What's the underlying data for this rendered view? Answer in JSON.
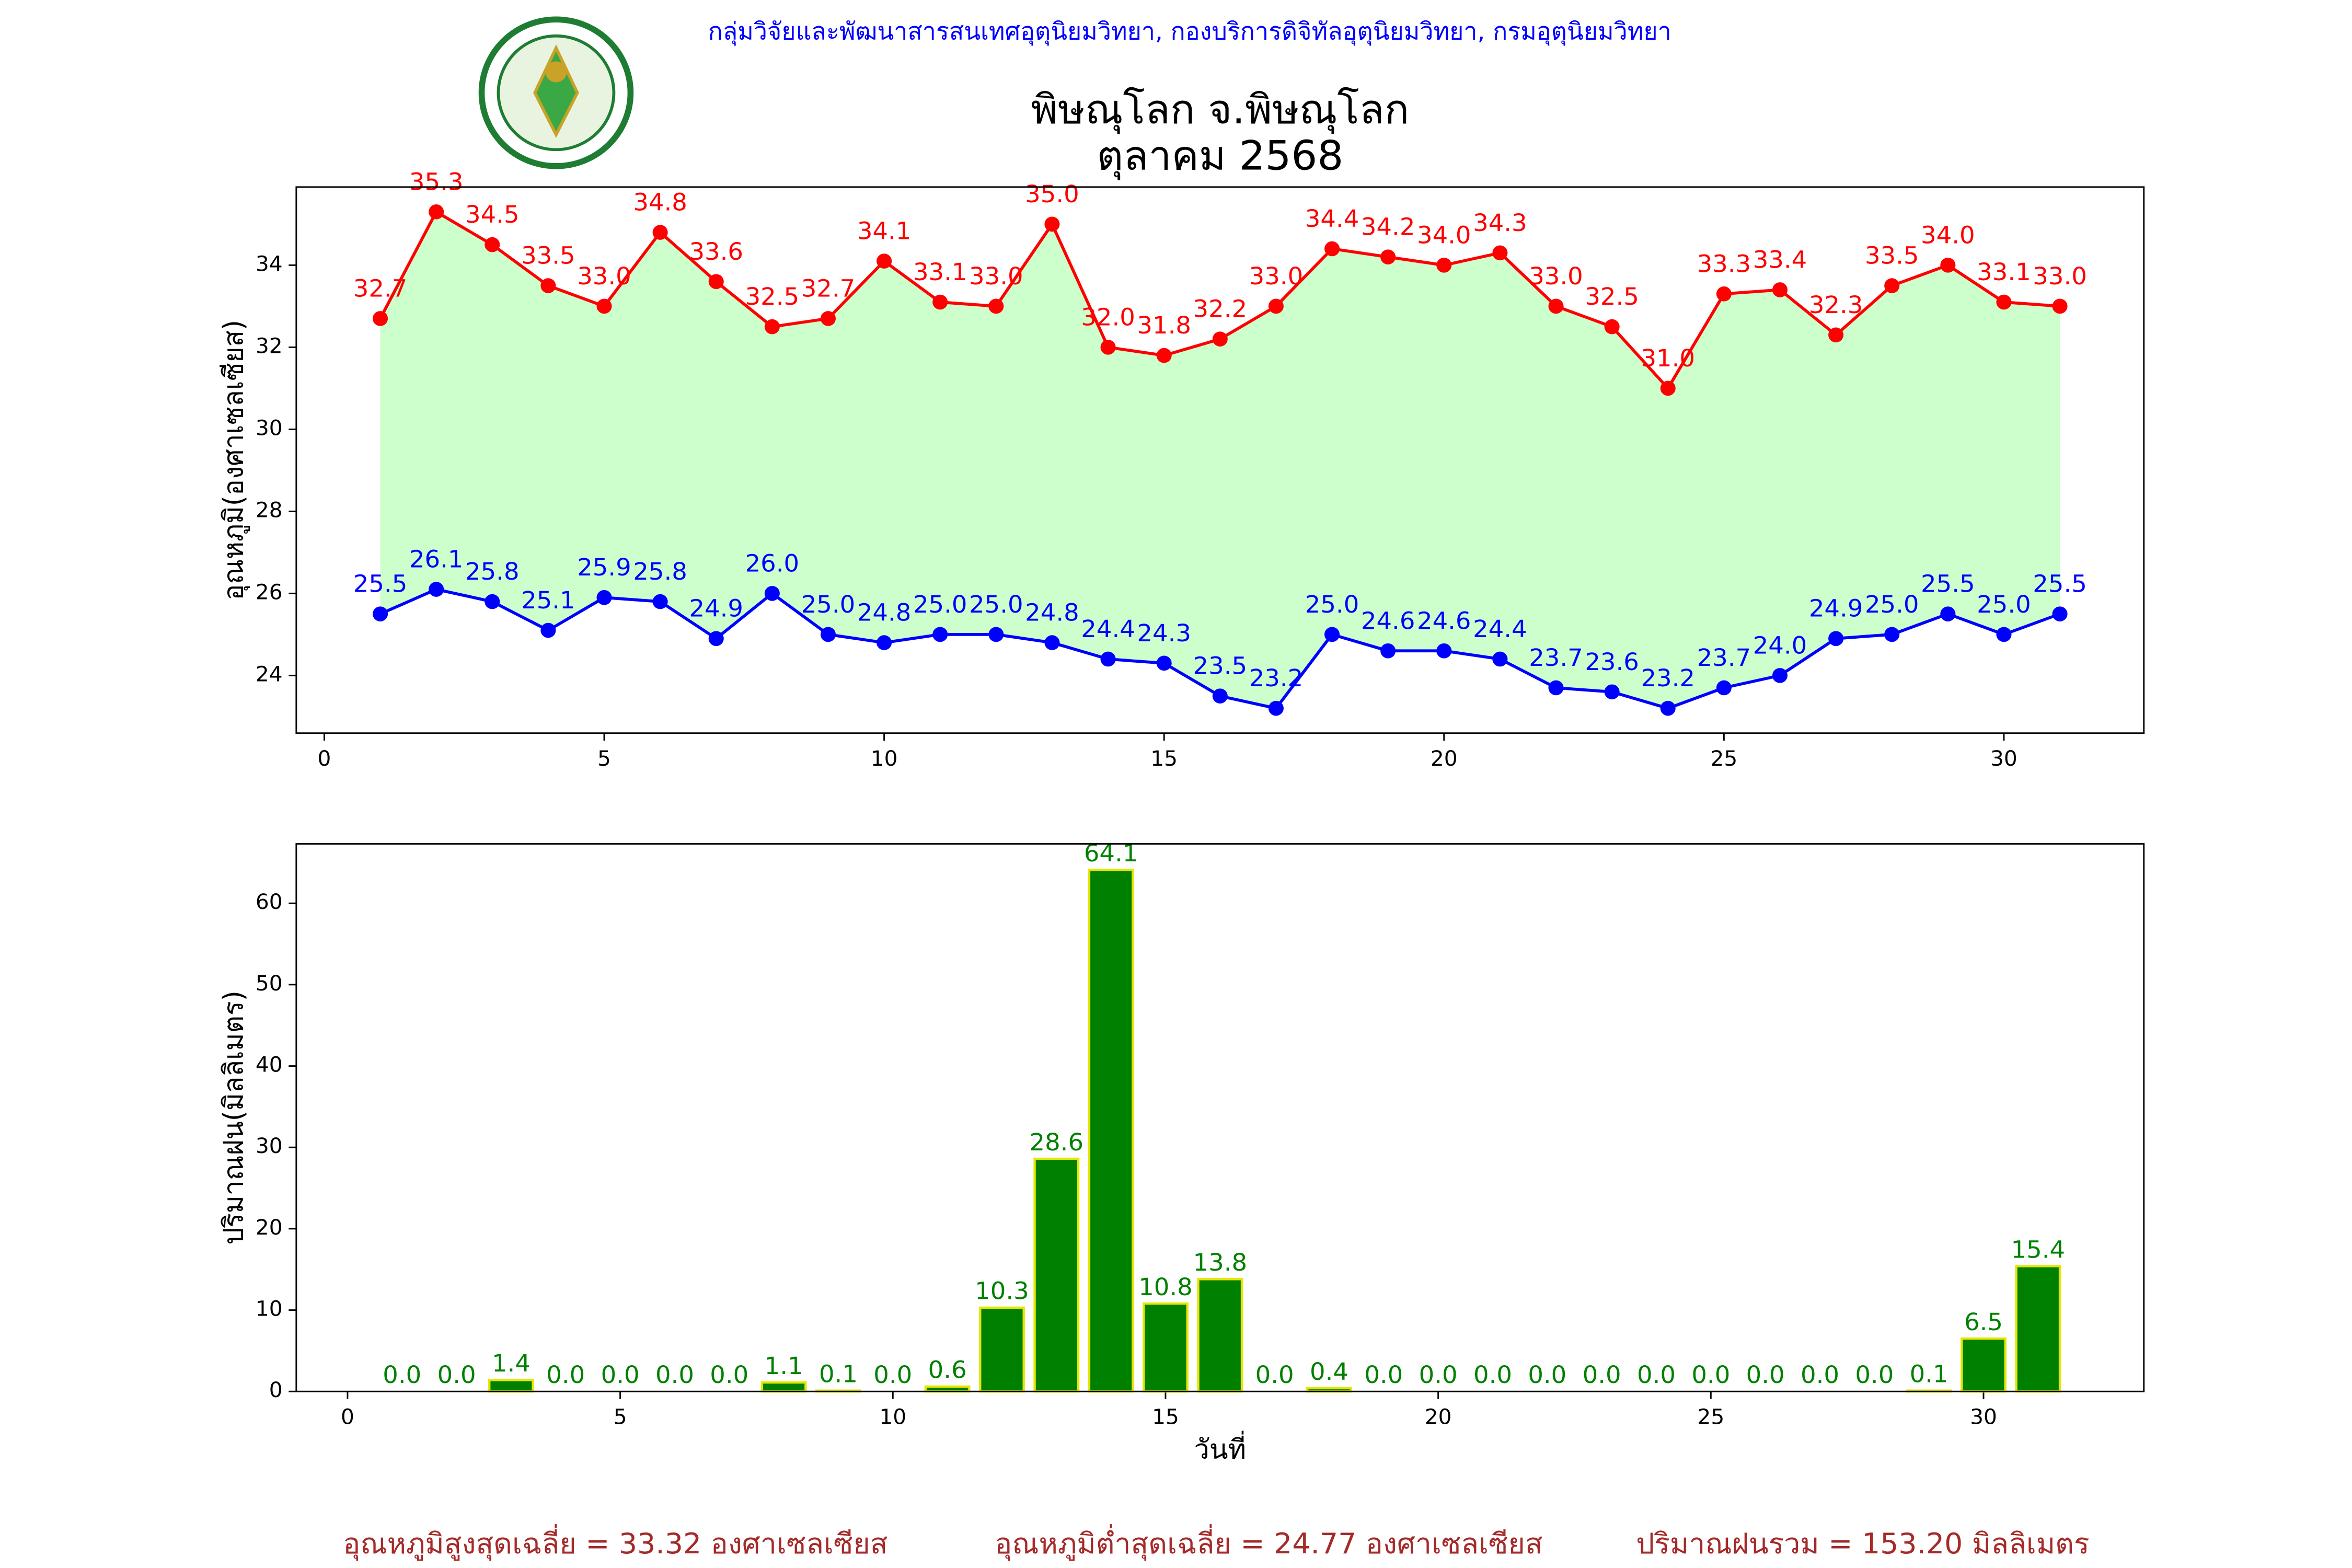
{
  "header": {
    "organization": "กลุ่มวิจัยและพัฒนาสารสนเทศอุตุนิยมวิทยา, กองบริการดิจิทัลอุตุนิยมวิทยา, กรมอุตุนิยมวิทยา",
    "title": "พิษณุโลก จ.พิษณุโลก",
    "subtitle": "ตุลาคม 2568"
  },
  "chart_data": [
    {
      "type": "line",
      "y_label": "อุณหภูมิ(องศาเซลเซียส)",
      "x": [
        1,
        2,
        3,
        4,
        5,
        6,
        7,
        8,
        9,
        10,
        11,
        12,
        13,
        14,
        15,
        16,
        17,
        18,
        19,
        20,
        21,
        22,
        23,
        24,
        25,
        26,
        27,
        28,
        29,
        30,
        31
      ],
      "series": [
        {
          "name": "max",
          "color": "#ff0000",
          "values": [
            32.7,
            35.3,
            34.5,
            33.5,
            33.0,
            34.8,
            33.6,
            32.5,
            32.7,
            34.1,
            33.1,
            33.0,
            35.0,
            32.0,
            31.8,
            32.2,
            33.0,
            34.4,
            34.2,
            34.0,
            34.3,
            33.0,
            32.5,
            31.0,
            33.3,
            33.4,
            32.3,
            33.5,
            34.0,
            33.1,
            33.0
          ],
          "value_labels": [
            "32.7",
            "35.3",
            "34.5",
            "33.5",
            "33.0",
            "34.8",
            "33.6",
            "32.5",
            "32.7",
            "34.1",
            "33.1",
            "33.0",
            "35.0",
            "32.0",
            "31.8",
            "32.2",
            "33.0",
            "34.4",
            "34.2",
            "34.0",
            "34.3",
            "33.0",
            "32.5",
            "31.0",
            "33.3",
            "33.4",
            "32.3",
            "33.5",
            "34.0",
            "33.1",
            "33.0"
          ]
        },
        {
          "name": "min",
          "color": "#0000ff",
          "values": [
            25.5,
            26.1,
            25.8,
            25.1,
            25.9,
            25.8,
            24.9,
            26.0,
            25.0,
            24.8,
            25.0,
            25.0,
            24.8,
            24.4,
            24.3,
            23.5,
            23.2,
            25.0,
            24.6,
            24.6,
            24.4,
            23.7,
            23.6,
            23.2,
            23.7,
            24.0,
            24.9,
            25.0,
            25.5,
            25.0,
            25.5
          ],
          "value_labels": [
            "25.5",
            "26.1",
            "25.8",
            "25.1",
            "25.9",
            "25.8",
            "24.9",
            "26.0",
            "25.0",
            "24.8",
            "25.0",
            "25.0",
            "24.8",
            "24.4",
            "24.3",
            "23.5",
            "23.2",
            "25.0",
            "24.6",
            "24.6",
            "24.4",
            "23.7",
            "23.6",
            "23.2",
            "23.7",
            "24.0",
            "24.9",
            "25.0",
            "25.5",
            "25.0",
            "25.5"
          ]
        }
      ],
      "fill_between_color": "#ccffcc",
      "xlim": [
        -0.5,
        32.5
      ],
      "xticks": [
        0,
        5,
        10,
        15,
        20,
        25,
        30
      ],
      "ylim": [
        22.595,
        35.905
      ],
      "yticks": [
        24,
        26,
        28,
        30,
        32,
        34
      ]
    },
    {
      "type": "bar",
      "y_label": "ปริมาณฝน(มิลลิเมตร)",
      "x_label": "วันที่",
      "x": [
        1,
        2,
        3,
        4,
        5,
        6,
        7,
        8,
        9,
        10,
        11,
        12,
        13,
        14,
        15,
        16,
        17,
        18,
        19,
        20,
        21,
        22,
        23,
        24,
        25,
        26,
        27,
        28,
        29,
        30,
        31
      ],
      "values": [
        0.0,
        0.0,
        1.4,
        0.0,
        0.0,
        0.0,
        0.0,
        1.1,
        0.1,
        0.0,
        0.6,
        10.3,
        28.6,
        64.1,
        10.8,
        13.8,
        0.0,
        0.4,
        0.0,
        0.0,
        0.0,
        0.0,
        0.0,
        0.0,
        0.0,
        0.0,
        0.0,
        0.0,
        0.1,
        6.5,
        15.4
      ],
      "value_labels": [
        "0.0",
        "0.0",
        "1.4",
        "0.0",
        "0.0",
        "0.0",
        "0.0",
        "1.1",
        "0.1",
        "0.0",
        "0.6",
        "10.3",
        "28.6",
        "64.1",
        "10.8",
        "13.8",
        "0.0",
        "0.4",
        "0.0",
        "0.0",
        "0.0",
        "0.0",
        "0.0",
        "0.0",
        "0.0",
        "0.0",
        "0.0",
        "0.0",
        "0.1",
        "6.5",
        "15.4"
      ],
      "color": "#008000",
      "edge_color": "#e6e600",
      "xlim": [
        -0.94,
        32.94
      ],
      "xticks": [
        0,
        5,
        10,
        15,
        20,
        25,
        30
      ],
      "ylim": [
        0,
        67.305
      ],
      "yticks": [
        0,
        10,
        20,
        30,
        40,
        50,
        60
      ]
    }
  ],
  "summary": [
    "อุณหภูมิสูงสุดเฉลี่ย = 33.32 องศาเซลเซียส",
    "อุณหภูมิต่ำสุดเฉลี่ย = 24.77 องศาเซลเซียส",
    "ปริมาณฝนรวม = 153.20 มิลลิเมตร"
  ]
}
